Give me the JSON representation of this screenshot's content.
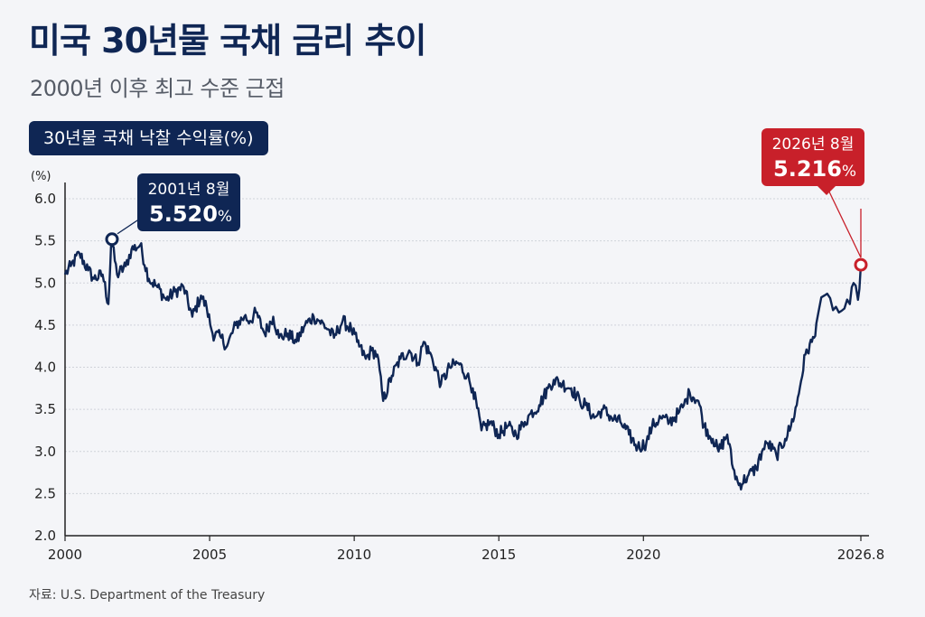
{
  "title": "미국 30년물 국채 금리 추이",
  "subtitle": "2000년 이후 최고 수준 근접",
  "badge": "30년물 국채 낙찰 수익률(%)",
  "source": "자료: U.S. Department of the Treasury",
  "colors": {
    "navy": "#0f2654",
    "red": "#c8202a",
    "grid": "#d0d3da"
  },
  "chart_data": {
    "type": "line",
    "unit_label": "(%)",
    "ylim": [
      2.0,
      6.0
    ],
    "y_ticks": [
      "2.0",
      "2.5",
      "3.0",
      "3.5",
      "4.0",
      "4.5",
      "5.0",
      "5.5",
      "6.0"
    ],
    "xlim": [
      2000,
      2027.2
    ],
    "x_ticks": [
      {
        "value": 2000,
        "label": "2000"
      },
      {
        "value": 2005,
        "label": "2005"
      },
      {
        "value": 2010,
        "label": "2010"
      },
      {
        "value": 2015,
        "label": "2015"
      },
      {
        "value": 2020,
        "label": "2020"
      },
      {
        "value": 2026.6,
        "label": "2026.8"
      }
    ],
    "grid": true,
    "series": [
      {
        "values": [
          [
            2000.0,
            5.1
          ],
          [
            2000.2,
            5.2
          ],
          [
            2000.5,
            5.35
          ],
          [
            2000.8,
            5.15
          ],
          [
            2001.0,
            5.05
          ],
          [
            2001.3,
            5.1
          ],
          [
            2001.5,
            4.75
          ],
          [
            2001.8,
            5.1
          ],
          [
            2002.1,
            5.2
          ],
          [
            2002.3,
            5.4
          ],
          [
            2001.6,
            5.52
          ],
          [
            2002.6,
            5.45
          ],
          [
            2002.9,
            5.05
          ],
          [
            2003.2,
            4.95
          ],
          [
            2003.5,
            4.8
          ],
          [
            2003.8,
            4.9
          ],
          [
            2004.1,
            4.95
          ],
          [
            2004.4,
            4.6
          ],
          [
            2004.7,
            4.85
          ],
          [
            2004.9,
            4.7
          ],
          [
            2005.1,
            4.4
          ],
          [
            2005.4,
            4.35
          ],
          [
            2005.6,
            4.25
          ],
          [
            2005.9,
            4.5
          ],
          [
            2006.2,
            4.6
          ],
          [
            2006.4,
            4.55
          ],
          [
            2006.6,
            4.65
          ],
          [
            2006.9,
            4.4
          ],
          [
            2007.2,
            4.6
          ],
          [
            2007.4,
            4.35
          ],
          [
            2007.7,
            4.4
          ],
          [
            2008.0,
            4.3
          ],
          [
            2008.3,
            4.5
          ],
          [
            2008.6,
            4.6
          ],
          [
            2008.8,
            4.55
          ],
          [
            2009.1,
            4.45
          ],
          [
            2009.3,
            4.35
          ],
          [
            2009.6,
            4.55
          ],
          [
            2009.9,
            4.45
          ],
          [
            2010.1,
            4.3
          ],
          [
            2010.4,
            4.1
          ],
          [
            2010.6,
            4.2
          ],
          [
            2010.8,
            4.15
          ],
          [
            2011.0,
            3.6
          ],
          [
            2011.3,
            3.9
          ],
          [
            2011.6,
            4.1
          ],
          [
            2011.9,
            4.2
          ],
          [
            2012.2,
            4.05
          ],
          [
            2012.4,
            4.3
          ],
          [
            2012.7,
            4.1
          ],
          [
            2013.0,
            3.8
          ],
          [
            2013.3,
            4.0
          ],
          [
            2013.6,
            4.05
          ],
          [
            2013.9,
            3.9
          ],
          [
            2014.1,
            3.75
          ],
          [
            2014.4,
            3.25
          ],
          [
            2014.7,
            3.35
          ],
          [
            2015.0,
            3.2
          ],
          [
            2015.3,
            3.3
          ],
          [
            2015.6,
            3.2
          ],
          [
            2015.9,
            3.35
          ],
          [
            2016.1,
            3.45
          ],
          [
            2016.4,
            3.55
          ],
          [
            2016.7,
            3.75
          ],
          [
            2016.9,
            3.85
          ],
          [
            2017.2,
            3.8
          ],
          [
            2017.5,
            3.75
          ],
          [
            2017.8,
            3.6
          ],
          [
            2018.0,
            3.55
          ],
          [
            2018.3,
            3.4
          ],
          [
            2018.6,
            3.5
          ],
          [
            2018.9,
            3.4
          ],
          [
            2019.2,
            3.35
          ],
          [
            2019.5,
            3.2
          ],
          [
            2019.8,
            3.05
          ],
          [
            2020.1,
            3.1
          ],
          [
            2020.3,
            3.3
          ],
          [
            2020.6,
            3.4
          ],
          [
            2020.9,
            3.35
          ],
          [
            2021.2,
            3.45
          ],
          [
            2021.4,
            3.55
          ],
          [
            2021.6,
            3.7
          ],
          [
            2021.9,
            3.6
          ],
          [
            2022.1,
            3.3
          ],
          [
            2022.4,
            3.15
          ],
          [
            2022.6,
            3.0
          ],
          [
            2022.9,
            3.2
          ],
          [
            2023.1,
            2.8
          ],
          [
            2023.3,
            2.6
          ],
          [
            2023.6,
            2.7
          ],
          [
            2023.9,
            2.8
          ],
          [
            2024.1,
            3.0
          ],
          [
            2024.3,
            3.1
          ],
          [
            2024.6,
            2.95
          ],
          [
            2024.9,
            3.15
          ],
          [
            2025.1,
            3.3
          ],
          [
            2025.3,
            3.55
          ],
          [
            2025.6,
            4.15
          ],
          [
            2025.9,
            4.35
          ],
          [
            2026.1,
            4.85
          ],
          [
            2026.3,
            4.65
          ],
          [
            2026.45,
            4.75
          ],
          [
            2026.5,
            5.0
          ],
          [
            2026.56,
            4.8
          ],
          [
            2026.6,
            5.216
          ]
        ]
      }
    ],
    "callouts": [
      {
        "date": "2001년 8월",
        "value": "5.520",
        "pct": "%",
        "x": 2001.6,
        "y": 5.52,
        "color": "navy"
      },
      {
        "date": "2026년 8월",
        "value": "5.216",
        "pct": "%",
        "x": 2026.6,
        "y": 5.216,
        "color": "red"
      }
    ]
  }
}
